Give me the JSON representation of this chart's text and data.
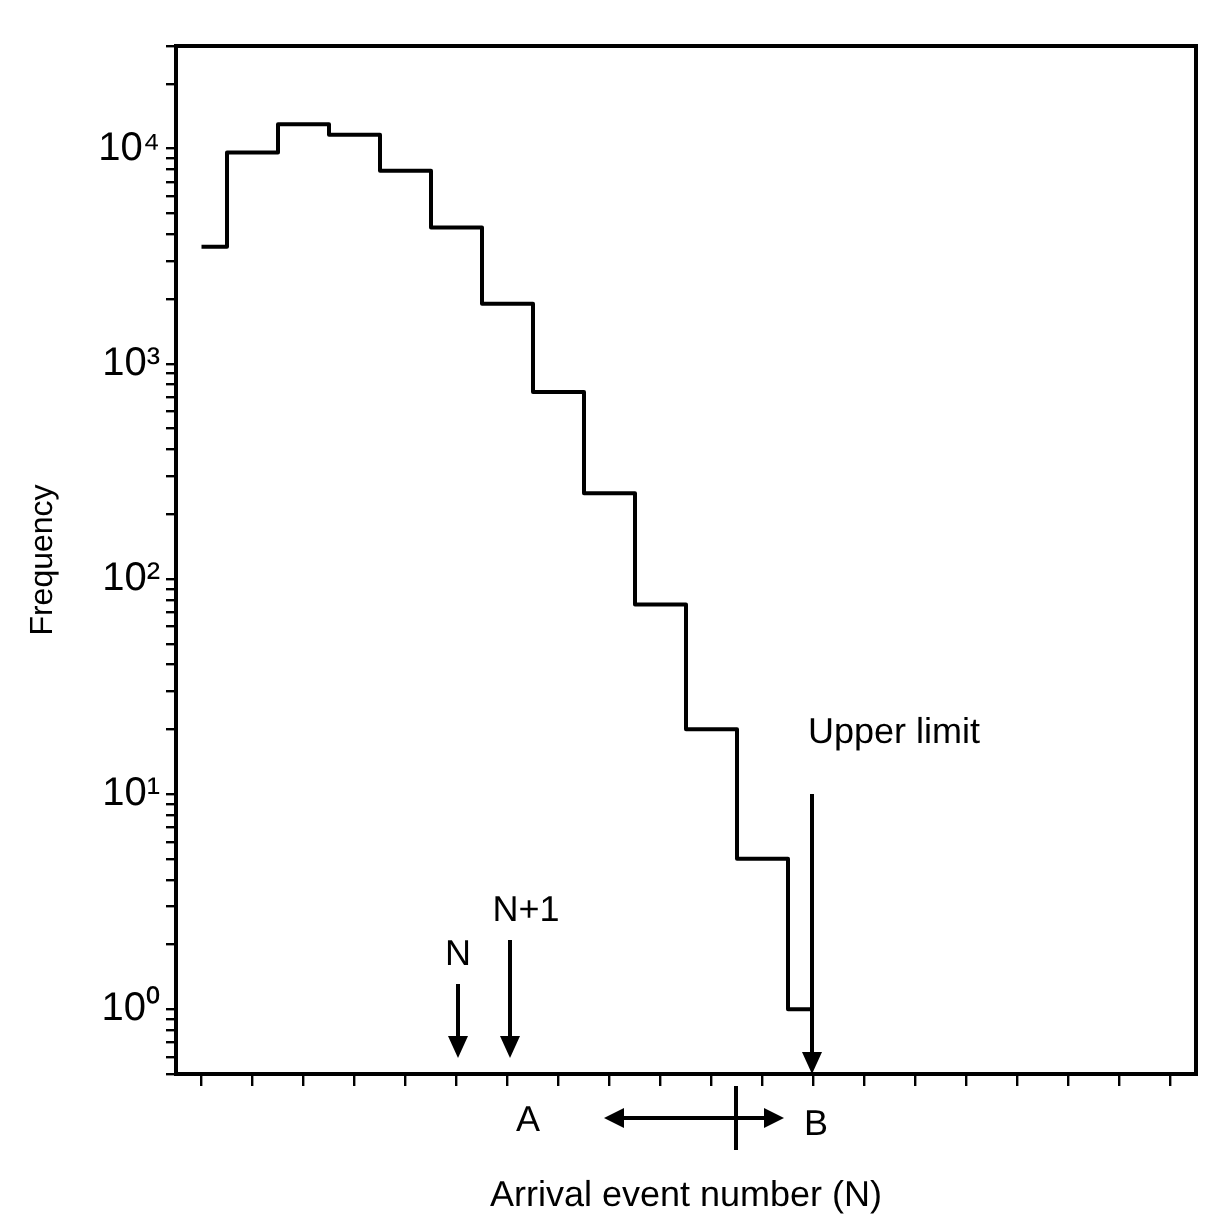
{
  "chart_data": {
    "type": "step",
    "xlabel": "Arrival event number (N)",
    "ylabel": "Frequency",
    "categories": [
      null,
      null,
      null,
      null,
      null,
      null,
      null,
      null,
      null,
      null,
      null,
      null,
      null
    ],
    "values": [
      3500,
      9600,
      13000,
      11600,
      7900,
      4300,
      1900,
      740,
      250,
      76,
      20,
      5,
      1
    ],
    "color": "#000000",
    "log": true,
    "ylim": [
      0.5,
      30000
    ],
    "yticks": [
      {
        "value": 0.5,
        "label": null
      },
      {
        "value": 0.6,
        "label": null
      },
      {
        "value": 0.7,
        "label": null
      },
      {
        "value": 0.8,
        "label": null
      },
      {
        "value": 0.9,
        "label": null
      },
      {
        "value": 1,
        "label": "10⁰"
      },
      {
        "value": 2,
        "label": null
      },
      {
        "value": 3,
        "label": null
      },
      {
        "value": 4,
        "label": null
      },
      {
        "value": 5,
        "label": null
      },
      {
        "value": 6,
        "label": null
      },
      {
        "value": 7,
        "label": null
      },
      {
        "value": 8,
        "label": null
      },
      {
        "value": 9,
        "label": null
      },
      {
        "value": 10,
        "label": "10¹"
      },
      {
        "value": 20,
        "label": null
      },
      {
        "value": 30,
        "label": null
      },
      {
        "value": 40,
        "label": null
      },
      {
        "value": 50,
        "label": null
      },
      {
        "value": 60,
        "label": null
      },
      {
        "value": 70,
        "label": null
      },
      {
        "value": 80,
        "label": null
      },
      {
        "value": 90,
        "label": null
      },
      {
        "value": 100,
        "label": "10²"
      },
      {
        "value": 200,
        "label": null
      },
      {
        "value": 300,
        "label": null
      },
      {
        "value": 400,
        "label": null
      },
      {
        "value": 500,
        "label": null
      },
      {
        "value": 600,
        "label": null
      },
      {
        "value": 700,
        "label": null
      },
      {
        "value": 800,
        "label": null
      },
      {
        "value": 900,
        "label": null
      },
      {
        "value": 1000,
        "label": "10³"
      },
      {
        "value": 2000,
        "label": null
      },
      {
        "value": 3000,
        "label": null
      },
      {
        "value": 4000,
        "label": null
      },
      {
        "value": 5000,
        "label": null
      },
      {
        "value": 6000,
        "label": null
      },
      {
        "value": 7000,
        "label": null
      },
      {
        "value": 8000,
        "label": null
      },
      {
        "value": 9000,
        "label": null
      },
      {
        "value": 10000,
        "label": "10⁴"
      },
      {
        "value": 20000,
        "label": null
      },
      {
        "value": 30000,
        "label": null
      }
    ],
    "tick_labels": "y",
    "grid": false,
    "legend": false,
    "marker": "none",
    "line_style": "solid",
    "annotations": [
      "N",
      "N+1",
      "Upper limit",
      "A",
      "B"
    ]
  }
}
